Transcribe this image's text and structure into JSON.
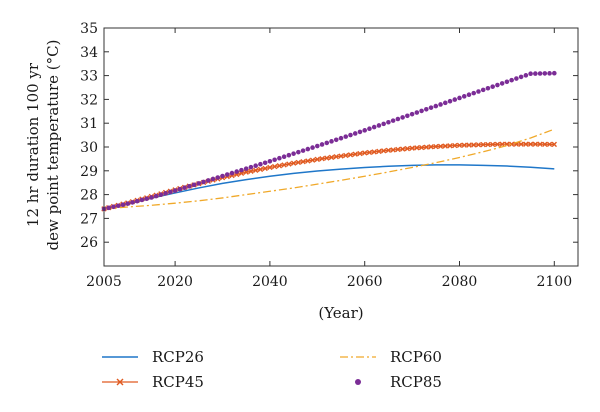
{
  "chart_data": {
    "type": "line",
    "title": "",
    "xlabel": "(Year)",
    "ylabel_lines": [
      "12 hr duration 100 yr",
      "dew point temperature (°C)"
    ],
    "xlim": [
      2005,
      2105
    ],
    "ylim": [
      25,
      35
    ],
    "x_ticks": [
      2005,
      2020,
      2040,
      2060,
      2080,
      2100
    ],
    "y_ticks": [
      26,
      27,
      28,
      29,
      30,
      31,
      32,
      33,
      34,
      35
    ],
    "grid": false,
    "legend_position": "bottom",
    "x": [
      2005,
      2010,
      2015,
      2020,
      2025,
      2030,
      2035,
      2040,
      2045,
      2050,
      2055,
      2060,
      2065,
      2070,
      2075,
      2080,
      2085,
      2090,
      2095,
      2100
    ],
    "series": [
      {
        "name": "RCP26",
        "color": "#1f77c9",
        "style": "solid",
        "values": [
          27.4,
          27.6,
          27.85,
          28.07,
          28.28,
          28.47,
          28.63,
          28.77,
          28.89,
          28.99,
          29.07,
          29.14,
          29.19,
          29.23,
          29.25,
          29.25,
          29.23,
          29.2,
          29.15,
          29.08
        ]
      },
      {
        "name": "RCP45",
        "color": "#e05a20",
        "style": "cross-markers",
        "values": [
          27.4,
          27.65,
          27.92,
          28.2,
          28.46,
          28.71,
          28.94,
          29.14,
          29.32,
          29.48,
          29.62,
          29.75,
          29.86,
          29.95,
          30.02,
          30.07,
          30.1,
          30.12,
          30.12,
          30.11
        ]
      },
      {
        "name": "RCP60",
        "color": "#f0a92a",
        "style": "dash-dot",
        "values": [
          27.4,
          27.48,
          27.55,
          27.64,
          27.74,
          27.86,
          28.0,
          28.14,
          28.28,
          28.44,
          28.6,
          28.77,
          28.95,
          29.14,
          29.34,
          29.56,
          29.8,
          30.06,
          30.38,
          30.75
        ]
      },
      {
        "name": "RCP85",
        "color": "#7b2d96",
        "style": "star-markers",
        "values": [
          27.4,
          27.62,
          27.88,
          28.17,
          28.47,
          28.78,
          29.09,
          29.4,
          29.72,
          30.04,
          30.37,
          30.7,
          31.04,
          31.38,
          31.72,
          32.06,
          32.4,
          32.74,
          33.08,
          33.1
        ]
      }
    ]
  }
}
